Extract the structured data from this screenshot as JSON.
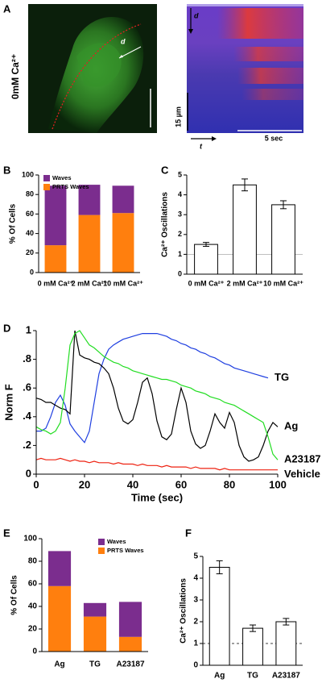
{
  "image_panel": {
    "panel": "A",
    "condition": "0mM Ca²⁺",
    "direction_labels": [
      "d",
      "d"
    ],
    "scale_bar_labels": [
      "15 µm",
      "5 sec"
    ],
    "time_label": "t"
  },
  "chart_data": [
    {
      "panel": "B",
      "type": "stacked_bar",
      "ylabel": "% Of Cells",
      "categories": [
        "0 mM Ca²⁺",
        "2 mM Ca²⁺",
        "10 mM Ca²⁺"
      ],
      "series": [
        {
          "name": "PRTS Waves",
          "color": "#ff7f0e",
          "values": [
            28,
            59,
            61
          ]
        },
        {
          "name": "Waves",
          "color": "#7b2d8e",
          "values": [
            61,
            31,
            28
          ]
        }
      ],
      "ylim": [
        0,
        100
      ],
      "yticks": [
        0,
        20,
        40,
        60,
        80,
        100
      ],
      "legend": "upper left"
    },
    {
      "panel": "C",
      "type": "bar",
      "ylabel": "Ca²⁺ Oscillations",
      "categories": [
        "0 mM Ca²⁺",
        "2 mM Ca²⁺",
        "10 mM Ca²⁺"
      ],
      "values": [
        1.5,
        4.5,
        3.5
      ],
      "errors": [
        0.1,
        0.3,
        0.2
      ],
      "color": "#ffffff",
      "ylim": [
        0,
        5
      ],
      "yticks": [
        0,
        1,
        2,
        3,
        4,
        5
      ],
      "reference_line": {
        "value": 1,
        "style": "solid"
      }
    },
    {
      "panel": "D",
      "type": "line",
      "xlabel": "Time (sec)",
      "ylabel": "Norm F",
      "x": [
        0,
        2,
        4,
        6,
        8,
        10,
        12,
        14,
        16,
        18,
        20,
        22,
        24,
        26,
        28,
        30,
        32,
        34,
        36,
        38,
        40,
        42,
        44,
        46,
        48,
        50,
        52,
        54,
        56,
        58,
        60,
        62,
        64,
        66,
        68,
        70,
        72,
        74,
        76,
        78,
        80,
        82,
        84,
        86,
        88,
        90,
        92,
        94,
        96,
        98,
        100
      ],
      "series": [
        {
          "name": "TG",
          "color": "#1f3fe0",
          "values": [
            0.3,
            0.3,
            0.32,
            0.4,
            0.5,
            0.55,
            0.48,
            0.35,
            0.3,
            0.26,
            0.22,
            0.3,
            0.5,
            0.7,
            0.8,
            0.87,
            0.9,
            0.92,
            0.94,
            0.95,
            0.96,
            0.97,
            0.98,
            0.98,
            0.98,
            0.98,
            0.97,
            0.96,
            0.94,
            0.93,
            0.91,
            0.9,
            0.88,
            0.87,
            0.85,
            0.84,
            0.82,
            0.81,
            0.79,
            0.77,
            0.76,
            0.74,
            0.73,
            0.72,
            0.71,
            0.7,
            0.69,
            0.68,
            0.67,
            null,
            null
          ]
        },
        {
          "name": "Ag",
          "color": "#000000",
          "values": [
            0.53,
            0.52,
            0.5,
            0.5,
            0.48,
            0.46,
            0.45,
            0.42,
            1.0,
            0.83,
            0.81,
            0.8,
            0.78,
            0.77,
            0.74,
            0.7,
            0.6,
            0.46,
            0.37,
            0.35,
            0.38,
            0.5,
            0.64,
            0.67,
            0.56,
            0.37,
            0.26,
            0.24,
            0.28,
            0.45,
            0.6,
            0.5,
            0.3,
            0.21,
            0.18,
            0.2,
            0.3,
            0.42,
            0.36,
            0.32,
            0.43,
            0.36,
            0.2,
            0.12,
            0.09,
            0.1,
            0.12,
            0.2,
            0.3,
            0.36,
            0.33
          ]
        },
        {
          "name": "A23187",
          "color": "#22dd22",
          "values": [
            0.33,
            0.31,
            0.3,
            0.28,
            0.3,
            0.36,
            0.6,
            0.9,
            0.98,
            1.0,
            0.95,
            0.9,
            0.88,
            0.85,
            0.82,
            0.8,
            0.78,
            0.77,
            0.75,
            0.74,
            0.72,
            0.71,
            0.7,
            0.69,
            0.68,
            0.67,
            0.66,
            0.66,
            0.65,
            0.64,
            0.62,
            0.61,
            0.6,
            0.58,
            0.57,
            0.56,
            0.54,
            0.53,
            0.52,
            0.5,
            0.49,
            0.48,
            0.46,
            0.44,
            0.42,
            0.4,
            0.38,
            0.36,
            0.26,
            0.14,
            0.1
          ]
        },
        {
          "name": "Vehicle",
          "color": "#ee2211",
          "values": [
            0.1,
            0.11,
            0.1,
            0.1,
            0.1,
            0.11,
            0.1,
            0.09,
            0.1,
            0.09,
            0.09,
            0.08,
            0.09,
            0.08,
            0.08,
            0.08,
            0.07,
            0.08,
            0.07,
            0.07,
            0.07,
            0.06,
            0.07,
            0.06,
            0.06,
            0.06,
            0.05,
            0.06,
            0.05,
            0.05,
            0.05,
            0.05,
            0.04,
            0.05,
            0.04,
            0.04,
            0.04,
            0.04,
            0.03,
            0.04,
            0.03,
            0.03,
            0.03,
            0.03,
            0.03,
            0.03,
            0.03,
            0.03,
            0.03,
            0.03,
            0.03
          ]
        }
      ],
      "xlim": [
        0,
        100
      ],
      "xticks": [
        0,
        20,
        40,
        60,
        80,
        100
      ],
      "ylim": [
        0,
        1
      ],
      "yticks": [
        0,
        {
          "value": 0.2,
          "label": ".2"
        },
        {
          "value": 0.4,
          "label": ".4"
        },
        {
          "value": 0.6,
          "label": ".6"
        },
        {
          "value": 0.8,
          "label": ".8"
        },
        1
      ]
    },
    {
      "panel": "E",
      "type": "stacked_bar",
      "ylabel": "% Of Cells",
      "categories": [
        "Ag",
        "TG",
        "A23187"
      ],
      "series": [
        {
          "name": "PRTS Waves",
          "color": "#ff7f0e",
          "values": [
            58,
            31,
            13
          ]
        },
        {
          "name": "Waves",
          "color": "#7b2d8e",
          "values": [
            31,
            12,
            31
          ]
        }
      ],
      "ylim": [
        0,
        100
      ],
      "yticks": [
        0,
        20,
        40,
        60,
        80,
        100
      ],
      "legend": "upper right"
    },
    {
      "panel": "F",
      "type": "bar",
      "ylabel": "Ca²⁺ Oscillations",
      "categories": [
        "Ag",
        "TG",
        "A23187"
      ],
      "values": [
        4.5,
        1.7,
        2.0
      ],
      "errors": [
        0.3,
        0.15,
        0.15
      ],
      "color": "#ffffff",
      "ylim": [
        0,
        5
      ],
      "yticks": [
        0,
        1,
        2,
        3,
        4,
        5
      ],
      "reference_line": {
        "value": 1,
        "style": "dashed"
      }
    }
  ]
}
